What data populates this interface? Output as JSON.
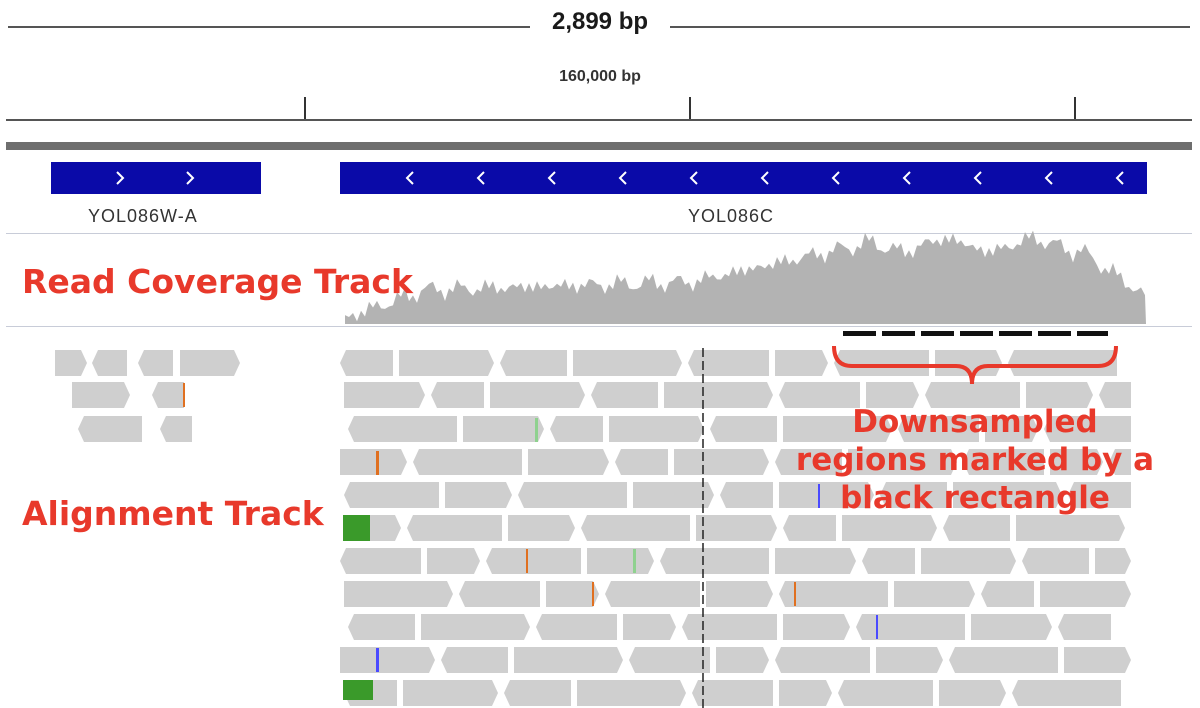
{
  "ruler": {
    "span_label": "2,899 bp",
    "coordinate_label": "160,000 bp"
  },
  "genes": [
    {
      "name": "YOL086W-A",
      "strand": "+"
    },
    {
      "name": "YOL086C",
      "strand": "-"
    }
  ],
  "annotations": {
    "coverage_track": "Read Coverage Track",
    "alignment_track": "Alignment Track",
    "downsampled_line1": "Downsampled",
    "downsampled_line2": "regions marked by a",
    "downsampled_line3": "black rectangle"
  },
  "colors": {
    "gene": "#0a0aa8",
    "coverage": "#b3b3b3",
    "read": "#cfcfcf",
    "annotation": "#e8392b",
    "downsample_marker": "#111111"
  }
}
